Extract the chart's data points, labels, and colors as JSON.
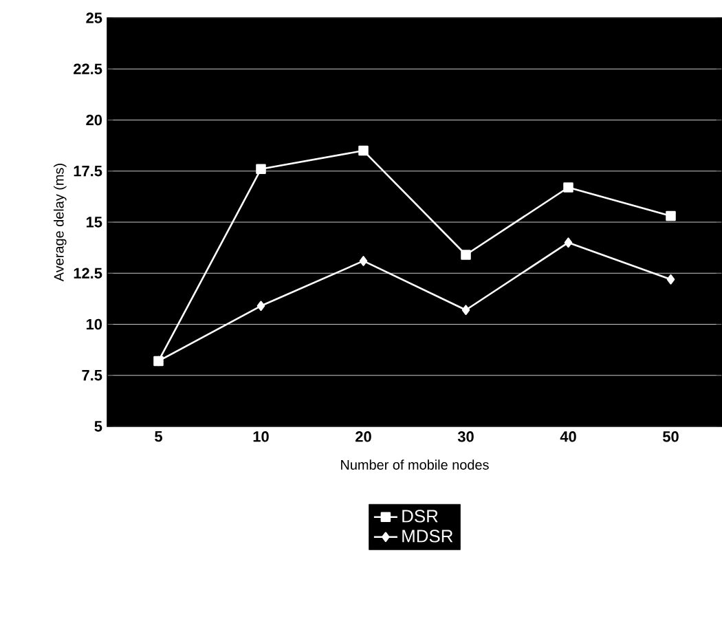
{
  "chart_data": {
    "type": "line",
    "xlabel": "Number of mobile nodes",
    "ylabel": "Average delay (ms)",
    "categories": [
      "5",
      "10",
      "20",
      "30",
      "40",
      "50"
    ],
    "series": [
      {
        "name": "DSR",
        "color": "#ffffff",
        "marker": "square",
        "values": [
          8.2,
          17.6,
          18.5,
          13.4,
          16.7,
          15.3
        ]
      },
      {
        "name": "MDSR",
        "color": "#ffffff",
        "marker": "diamond",
        "values": [
          8.2,
          10.9,
          13.1,
          10.7,
          14.0,
          12.2
        ]
      }
    ],
    "ylim": [
      5,
      25
    ],
    "yticks": [
      5,
      7.5,
      10,
      12.5,
      15,
      17.5,
      20,
      22.5,
      25
    ],
    "grid": "y",
    "legend": "bottom",
    "line_style": "solid"
  }
}
